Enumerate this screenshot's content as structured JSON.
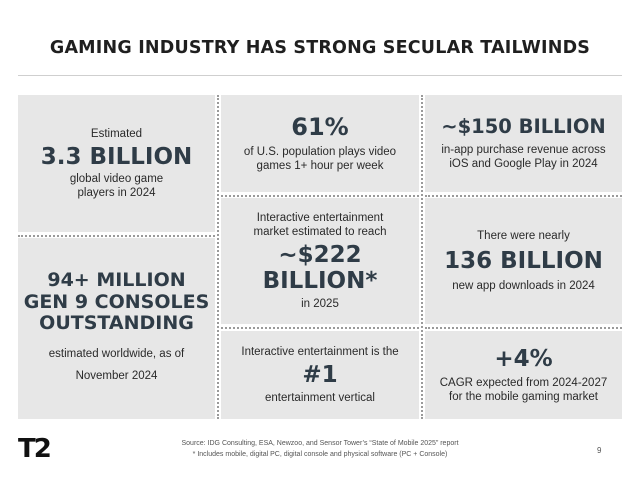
{
  "title": "GAMING INDUSTRY HAS STRONG SECULAR TAILWINDS",
  "cards": {
    "players": {
      "pre": "Estimated",
      "big": "3.3 BILLION",
      "post1": "global video game",
      "post2": "players in 2024"
    },
    "consoles": {
      "big1": "94+ MILLION",
      "big2": "GEN 9 CONSOLES",
      "big3": "OUTSTANDING",
      "post1": "estimated worldwide, as of",
      "post2": "November 2024"
    },
    "population": {
      "big": "61%",
      "post1": "of U.S. population plays video",
      "post2": "games 1+ hour per week"
    },
    "market": {
      "pre1": "Interactive entertainment",
      "pre2": "market estimated to reach",
      "big1": "~$222",
      "big2": "BILLION*",
      "post": "in 2025"
    },
    "vertical": {
      "pre": "Interactive entertainment is the",
      "big": "#1",
      "post": "entertainment vertical"
    },
    "inapp": {
      "big": "~$150 BILLION",
      "post1": "in-app purchase revenue across",
      "post2": "iOS and Google Play in 2024"
    },
    "downloads": {
      "pre": "There were nearly",
      "big": "136 BILLION",
      "post": "new app downloads in 2024"
    },
    "cagr": {
      "big": "+4%",
      "post1": "CAGR expected from 2024-2027",
      "post2": "for the mobile gaming market"
    }
  },
  "footer": {
    "source": "Source:  IDG Consulting, ESA, Newzoo, and Sensor Tower’s “State of Mobile 2025” report",
    "note": "*  Includes mobile, digital PC, digital console and physical software (PC + Console)"
  },
  "logo": "T2",
  "page_number": "9"
}
